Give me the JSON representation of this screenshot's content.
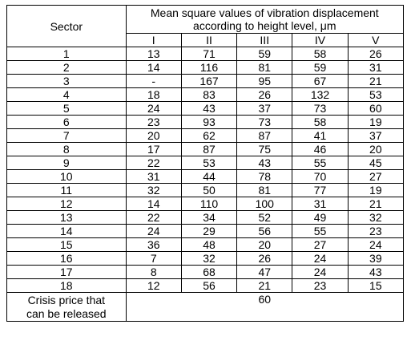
{
  "table": {
    "sector_header": "Sector",
    "group_header": "Mean square values of vibration displacement according to height level, μm",
    "levels": [
      "I",
      "II",
      "III",
      "IV",
      "V"
    ],
    "rows": [
      {
        "sector": "1",
        "values": [
          "13",
          "71",
          "59",
          "58",
          "26"
        ]
      },
      {
        "sector": "2",
        "values": [
          "14",
          "116",
          "81",
          "59",
          "31"
        ]
      },
      {
        "sector": "3",
        "values": [
          "-",
          "167",
          "95",
          "67",
          "21"
        ]
      },
      {
        "sector": "4",
        "values": [
          "18",
          "83",
          "26",
          "132",
          "53"
        ]
      },
      {
        "sector": "5",
        "values": [
          "24",
          "43",
          "37",
          "73",
          "60"
        ]
      },
      {
        "sector": "6",
        "values": [
          "23",
          "93",
          "73",
          "58",
          "19"
        ]
      },
      {
        "sector": "7",
        "values": [
          "20",
          "62",
          "87",
          "41",
          "37"
        ]
      },
      {
        "sector": "8",
        "values": [
          "17",
          "87",
          "75",
          "46",
          "20"
        ]
      },
      {
        "sector": "9",
        "values": [
          "22",
          "53",
          "43",
          "55",
          "45"
        ]
      },
      {
        "sector": "10",
        "values": [
          "31",
          "44",
          "78",
          "70",
          "27"
        ]
      },
      {
        "sector": "11",
        "values": [
          "32",
          "50",
          "81",
          "77",
          "19"
        ]
      },
      {
        "sector": "12",
        "values": [
          "14",
          "110",
          "100",
          "31",
          "21"
        ]
      },
      {
        "sector": "13",
        "values": [
          "22",
          "34",
          "52",
          "49",
          "32"
        ]
      },
      {
        "sector": "14",
        "values": [
          "24",
          "29",
          "56",
          "55",
          "23"
        ]
      },
      {
        "sector": "15",
        "values": [
          "36",
          "48",
          "20",
          "27",
          "24"
        ]
      },
      {
        "sector": "16",
        "values": [
          "7",
          "32",
          "26",
          "24",
          "39"
        ]
      },
      {
        "sector": "17",
        "values": [
          "8",
          "68",
          "47",
          "24",
          "43"
        ]
      },
      {
        "sector": "18",
        "values": [
          "12",
          "56",
          "21",
          "23",
          "15"
        ]
      }
    ],
    "footer_label_line1": "Crisis price that",
    "footer_label_line2": "can be released",
    "footer_value": "60"
  }
}
